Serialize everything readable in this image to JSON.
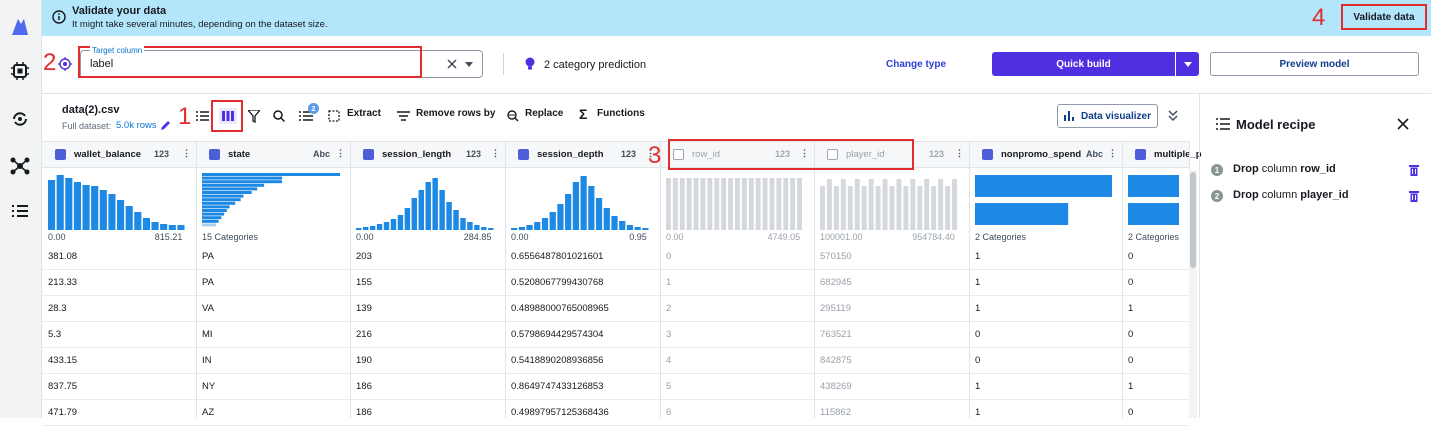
{
  "banner": {
    "title": "Validate your data",
    "subtitle": "It might take several minutes, depending on the dataset size.",
    "validate_label": "Validate data"
  },
  "annotations": {
    "a1": "1",
    "a2": "2",
    "a3": "3",
    "a4": "4"
  },
  "target": {
    "legend": "Target column",
    "value": "label"
  },
  "prediction": {
    "label": "2 category prediction"
  },
  "actions": {
    "change_type": "Change type",
    "quick_build": "Quick build",
    "preview_model": "Preview model"
  },
  "dataset": {
    "name": "data(2).csv",
    "full_label": "Full dataset:",
    "rows": "5.0k rows"
  },
  "toolbar": {
    "badge": "2",
    "extract": "Extract",
    "remove_rows": "Remove rows by",
    "replace": "Replace",
    "functions": "Functions",
    "visualizer": "Data visualizer"
  },
  "columns": [
    {
      "name": "wallet_balance",
      "type": "123",
      "min": "0.00",
      "max": "815.21"
    },
    {
      "name": "state",
      "type": "Abc",
      "min": "15 Categories",
      "max": ""
    },
    {
      "name": "session_length",
      "type": "123",
      "min": "0.00",
      "max": "284.85"
    },
    {
      "name": "session_depth",
      "type": "123",
      "min": "0.00",
      "max": "0.95"
    },
    {
      "name": "row_id",
      "type": "123",
      "min": "0.00",
      "max": "4749.05"
    },
    {
      "name": "player_id",
      "type": "123",
      "min": "100001.00",
      "max": "954784.40"
    },
    {
      "name": "nonpromo_spend",
      "type": "Abc",
      "min": "2 Categories",
      "max": ""
    },
    {
      "name": "multiple_p",
      "type": "",
      "min": "2 Categories",
      "max": ""
    }
  ],
  "rows": [
    [
      "381.08",
      "PA",
      "203",
      "0.6556487801021601",
      "0",
      "570150",
      "1",
      "0"
    ],
    [
      "213.33",
      "PA",
      "155",
      "0.5208067799430768",
      "1",
      "682945",
      "1",
      "0"
    ],
    [
      "28.3",
      "VA",
      "139",
      "0.48988000765008965",
      "2",
      "295119",
      "1",
      "1"
    ],
    [
      "5.3",
      "MI",
      "216",
      "0.5798694429574304",
      "3",
      "763521",
      "0",
      "0"
    ],
    [
      "433.15",
      "IN",
      "190",
      "0.5418890208936856",
      "4",
      "842875",
      "0",
      "0"
    ],
    [
      "837.75",
      "NY",
      "186",
      "0.8649747433126853",
      "5",
      "438269",
      "1",
      "1"
    ],
    [
      "471.79",
      "AZ",
      "186",
      "0.49897957125368436",
      "6",
      "115862",
      "1",
      "0"
    ]
  ],
  "recipe": {
    "title": "Model recipe",
    "steps": [
      {
        "num": "1",
        "action": "Drop column",
        "target": "row_id"
      },
      {
        "num": "2",
        "action": "Drop column",
        "target": "player_id"
      }
    ]
  },
  "colors": {
    "accent": "#4f2fe0",
    "banner": "#b4e6fb",
    "histogram": "#1e88e5",
    "annotation": "#e02d2d"
  }
}
